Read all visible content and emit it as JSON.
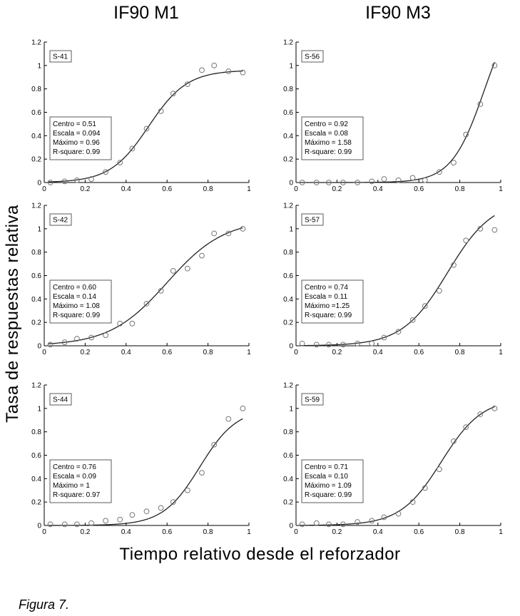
{
  "column_titles": [
    "IF90 M1",
    "IF90 M3"
  ],
  "ylabel": "Tasa de respuestas relativa",
  "xlabel": "Tiempo relativo desde el reforzador",
  "caption": "Figura 7.",
  "chart_data": [
    {
      "type": "scatter",
      "column": 0,
      "row": 0,
      "tag": "S-41",
      "xlim": [
        0,
        1
      ],
      "ylim": [
        0,
        1.2
      ],
      "x_ticks": [
        "0",
        "0.2",
        "0.4",
        "0.6",
        "0.8",
        "1"
      ],
      "y_ticks": [
        "0",
        "0.2",
        "0.4",
        "0.6",
        "0.8",
        "1",
        "1.2"
      ],
      "fit": {
        "centro": 0.51,
        "escala": 0.094,
        "maximo": 0.96
      },
      "stats": [
        "Centro = 0.51",
        "Escala = 0.094",
        "Máximo = 0.96",
        "R-square: 0.99"
      ],
      "points": {
        "x": [
          0.03,
          0.1,
          0.16,
          0.23,
          0.3,
          0.37,
          0.43,
          0.5,
          0.57,
          0.63,
          0.7,
          0.77,
          0.83,
          0.9,
          0.97
        ],
        "y": [
          0.0,
          0.01,
          0.02,
          0.03,
          0.09,
          0.17,
          0.29,
          0.46,
          0.61,
          0.76,
          0.84,
          0.96,
          1.0,
          0.95,
          0.94
        ]
      }
    },
    {
      "type": "scatter",
      "column": 1,
      "row": 0,
      "tag": "S-56",
      "xlim": [
        0,
        1
      ],
      "ylim": [
        0,
        1.2
      ],
      "x_ticks": [
        "0",
        "0.2",
        "0.4",
        "0.6",
        "0.8",
        "1"
      ],
      "y_ticks": [
        "0",
        "0.2",
        "0.4",
        "0.6",
        "0.8",
        "1",
        "1.2"
      ],
      "fit": {
        "centro": 0.92,
        "escala": 0.08,
        "maximo": 1.58
      },
      "stats": [
        "Centro = 0.92",
        "Escala = 0.08",
        "Máximo = 1.58",
        "R-square: 0.99"
      ],
      "points": {
        "x": [
          0.03,
          0.1,
          0.16,
          0.23,
          0.3,
          0.37,
          0.43,
          0.5,
          0.57,
          0.63,
          0.7,
          0.77,
          0.83,
          0.9,
          0.97
        ],
        "y": [
          0.0,
          0.0,
          0.0,
          0.0,
          0.0,
          0.01,
          0.03,
          0.02,
          0.04,
          0.02,
          0.09,
          0.17,
          0.41,
          0.67,
          1.0
        ]
      }
    },
    {
      "type": "scatter",
      "column": 0,
      "row": 1,
      "tag": "S-42",
      "xlim": [
        0,
        1
      ],
      "ylim": [
        0,
        1.2
      ],
      "x_ticks": [
        "0",
        "0.2",
        "0.4",
        "0.6",
        "0.8",
        "1"
      ],
      "y_ticks": [
        "0",
        "0.2",
        "0.4",
        "0.6",
        "0.8",
        "1",
        "1.2"
      ],
      "fit": {
        "centro": 0.6,
        "escala": 0.14,
        "maximo": 1.08
      },
      "stats": [
        "Centro = 0.60",
        "Escala = 0.14",
        "Máximo = 1.08",
        " R-square: 0.99"
      ],
      "points": {
        "x": [
          0.03,
          0.1,
          0.16,
          0.23,
          0.3,
          0.37,
          0.43,
          0.5,
          0.57,
          0.63,
          0.7,
          0.77,
          0.83,
          0.9,
          0.97
        ],
        "y": [
          0.01,
          0.03,
          0.06,
          0.07,
          0.09,
          0.19,
          0.19,
          0.36,
          0.47,
          0.64,
          0.66,
          0.77,
          0.96,
          0.96,
          1.0
        ]
      }
    },
    {
      "type": "scatter",
      "column": 1,
      "row": 1,
      "tag": "S-57",
      "xlim": [
        0,
        1
      ],
      "ylim": [
        0,
        1.2
      ],
      "x_ticks": [
        "0",
        "0.2",
        "0.4",
        "0.6",
        "0.8",
        "1"
      ],
      "y_ticks": [
        "0",
        "0.2",
        "0.4",
        "0.6",
        "0.8",
        "1",
        "1.2"
      ],
      "fit": {
        "centro": 0.74,
        "escala": 0.11,
        "maximo": 1.25
      },
      "stats": [
        "Centro = 0.74",
        "Escala = 0.11",
        "Máximo =1.25",
        "R-square: 0.99"
      ],
      "points": {
        "x": [
          0.03,
          0.1,
          0.16,
          0.23,
          0.3,
          0.37,
          0.43,
          0.5,
          0.57,
          0.63,
          0.7,
          0.77,
          0.83,
          0.9,
          0.97
        ],
        "y": [
          0.02,
          0.01,
          0.01,
          0.01,
          0.02,
          0.02,
          0.07,
          0.12,
          0.22,
          0.34,
          0.47,
          0.69,
          0.9,
          1.0,
          0.99
        ]
      }
    },
    {
      "type": "scatter",
      "column": 0,
      "row": 2,
      "tag": "S-44",
      "xlim": [
        0,
        1
      ],
      "ylim": [
        0,
        1.2
      ],
      "x_ticks": [
        "0",
        "0.2",
        "0.4",
        "0.6",
        "0.8",
        "1"
      ],
      "y_ticks": [
        "0",
        "0.2",
        "0.4",
        "0.6",
        "0.8",
        "1",
        "1.2"
      ],
      "fit": {
        "centro": 0.76,
        "escala": 0.09,
        "maximo": 1
      },
      "stats": [
        "Centro = 0.76",
        "Escala = 0.09",
        "Máximo = 1",
        "R-square: 0.97"
      ],
      "points": {
        "x": [
          0.03,
          0.1,
          0.16,
          0.23,
          0.3,
          0.37,
          0.43,
          0.5,
          0.57,
          0.63,
          0.7,
          0.77,
          0.83,
          0.9,
          0.97
        ],
        "y": [
          0.01,
          0.01,
          0.01,
          0.02,
          0.04,
          0.05,
          0.09,
          0.12,
          0.15,
          0.2,
          0.3,
          0.45,
          0.69,
          0.91,
          1.0
        ]
      }
    },
    {
      "type": "scatter",
      "column": 1,
      "row": 2,
      "tag": "S-59",
      "xlim": [
        0,
        1
      ],
      "ylim": [
        0,
        1.2
      ],
      "x_ticks": [
        "0",
        "0.2",
        "0.4",
        "0.6",
        "0.8",
        "1"
      ],
      "y_ticks": [
        "0",
        "0.2",
        "0.4",
        "0.6",
        "0.8",
        "1",
        "1.2"
      ],
      "fit": {
        "centro": 0.71,
        "escala": 0.1,
        "maximo": 1.09
      },
      "stats": [
        "Centro = 0.71",
        "Escala = 0.10",
        "Máximo = 1.09",
        "R-square: 0.99"
      ],
      "points": {
        "x": [
          0.03,
          0.1,
          0.16,
          0.23,
          0.3,
          0.37,
          0.43,
          0.5,
          0.57,
          0.63,
          0.7,
          0.77,
          0.83,
          0.9,
          0.97
        ],
        "y": [
          0.01,
          0.02,
          0.01,
          0.01,
          0.03,
          0.04,
          0.07,
          0.1,
          0.2,
          0.32,
          0.48,
          0.72,
          0.84,
          0.95,
          1.0
        ]
      }
    }
  ]
}
